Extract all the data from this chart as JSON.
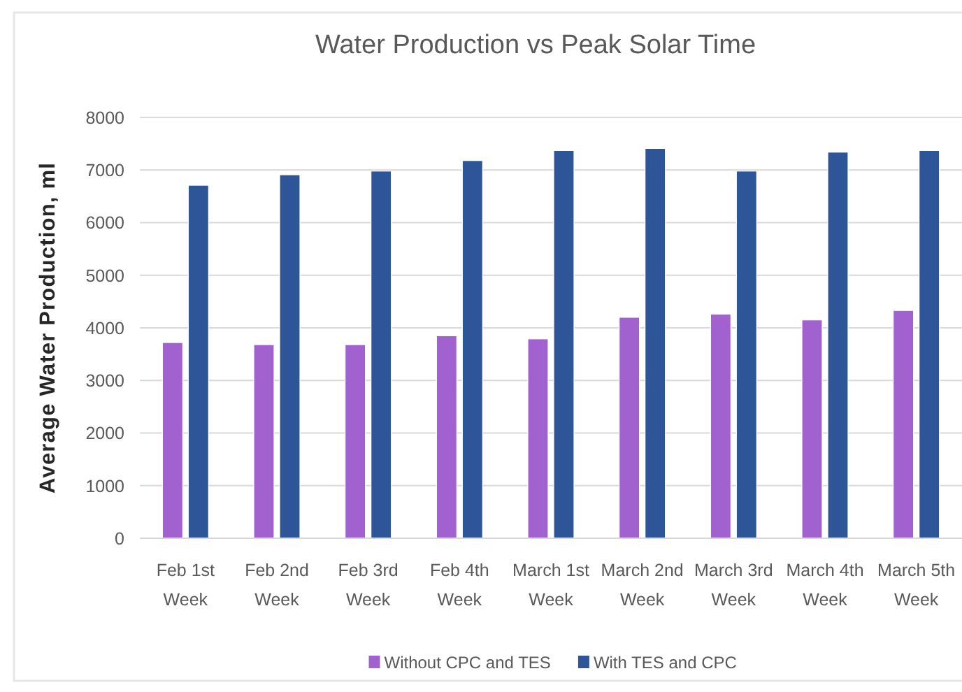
{
  "chart_data": {
    "type": "bar",
    "title": "Water Production vs Peak Solar Time",
    "ylabel": "Average Water Production, ml",
    "categories": [
      "Feb 1st Week",
      "Feb 2nd Week",
      "Feb 3rd Week",
      "Feb 4th Week",
      "March 1st Week",
      "March 2nd Week",
      "March 3rd Week",
      "March 4th Week",
      "March 5th Week"
    ],
    "series": [
      {
        "name": "Without CPC and TES",
        "color": "#a162cf",
        "values": [
          3720,
          3680,
          3680,
          3850,
          3790,
          4200,
          4260,
          4150,
          4330
        ]
      },
      {
        "name": "With TES and CPC",
        "color": "#2e5597",
        "values": [
          6710,
          6910,
          6980,
          7180,
          7370,
          7410,
          6980,
          7340,
          7370
        ]
      }
    ],
    "ylim": [
      0,
      8000
    ],
    "yticks": [
      0,
      1000,
      2000,
      3000,
      4000,
      5000,
      6000,
      7000,
      8000
    ],
    "grid": "y",
    "legend": "bottom"
  }
}
